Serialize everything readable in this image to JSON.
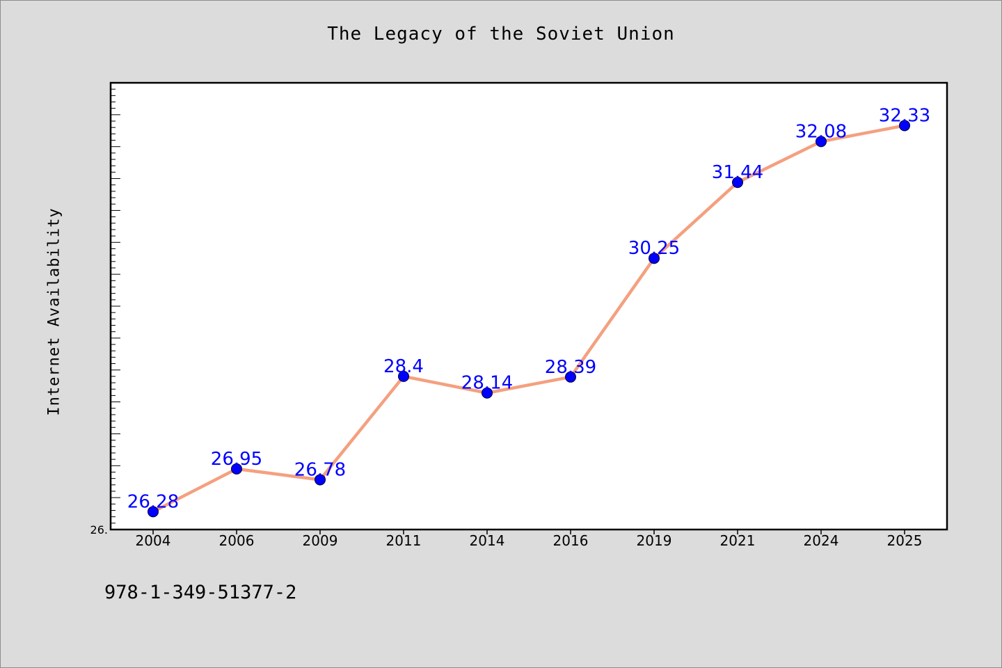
{
  "chart_data": {
    "type": "line",
    "title": "The Legacy of the Soviet Union",
    "ylabel": "Internet Availability",
    "xlabel": "",
    "categories": [
      "2004",
      "2006",
      "2009",
      "2011",
      "2014",
      "2016",
      "2019",
      "2021",
      "2024",
      "2025"
    ],
    "series": [
      {
        "values": [
          26.28,
          26.95,
          26.78,
          28.4,
          28.14,
          28.39,
          30.25,
          31.44,
          32.08,
          32.33
        ],
        "data_labels": [
          "26.28",
          "26.95",
          "26.78",
          "28.4",
          "28.14",
          "28.39",
          "30.25",
          "31.44",
          "32.08",
          "32.33"
        ],
        "line_color": "#f4a07f",
        "marker_color": "#0000ff"
      }
    ],
    "ytick_label": "26.",
    "ylim": [
      26.0,
      33.0
    ],
    "grid": false,
    "label_color": "#0000ff"
  },
  "footer": {
    "isbn": "978-1-349-51377-2"
  }
}
